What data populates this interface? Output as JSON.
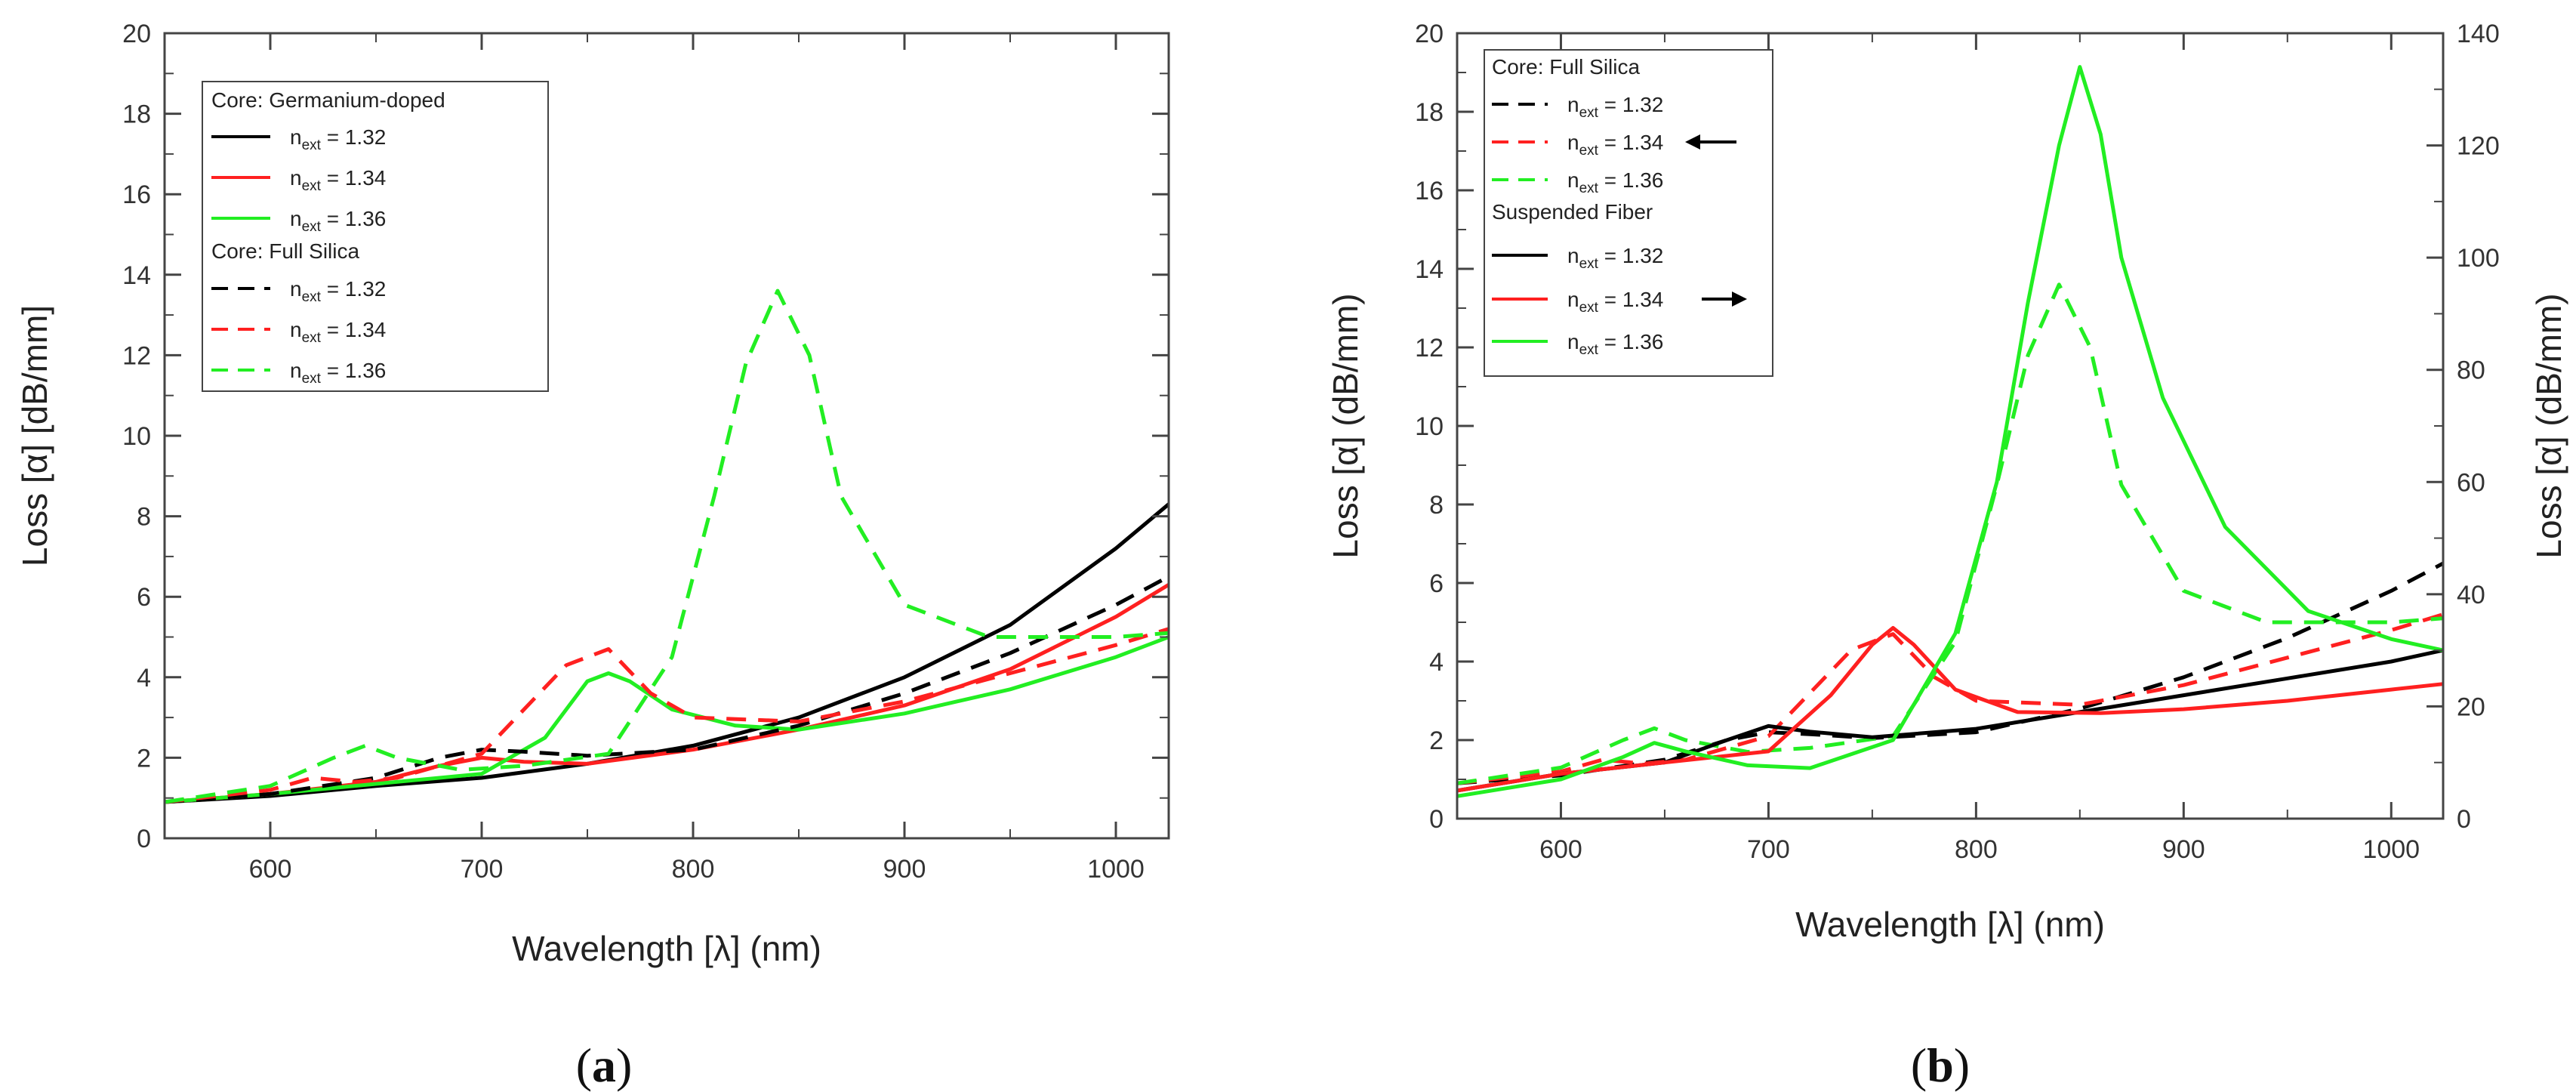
{
  "chart_data": [
    {
      "panel": "(a)",
      "panel_letter": "a",
      "type": "line",
      "xlabel": "Wavelength [λ] (nm)",
      "ylabel": "Loss [α] [dB/mm]",
      "xlim": [
        550,
        1025
      ],
      "ylim": [
        0,
        20
      ],
      "x_ticks": [
        600,
        700,
        800,
        900,
        1000
      ],
      "y_ticks": [
        0,
        2,
        4,
        6,
        8,
        10,
        12,
        14,
        16,
        18,
        20
      ],
      "legend": {
        "position": "top-left",
        "groups": [
          {
            "title": "Core: Germanium-doped",
            "entries": [
              {
                "main": "n",
                "sub": "ext",
                "rest": " = 1.32",
                "color": "#000000",
                "dash": "solid"
              },
              {
                "main": "n",
                "sub": "ext",
                "rest": " = 1.34",
                "color": "#ff2020",
                "dash": "solid"
              },
              {
                "main": "n",
                "sub": "ext",
                "rest": " = 1.36",
                "color": "#22ee22",
                "dash": "solid"
              }
            ]
          },
          {
            "title": "Core: Full Silica",
            "entries": [
              {
                "main": "n",
                "sub": "ext",
                "rest": " = 1.32",
                "color": "#000000",
                "dash": "dashed"
              },
              {
                "main": "n",
                "sub": "ext",
                "rest": " = 1.34",
                "color": "#ff2020",
                "dash": "dashed"
              },
              {
                "main": "n",
                "sub": "ext",
                "rest": " = 1.36",
                "color": "#22ee22",
                "dash": "dashed"
              }
            ]
          }
        ]
      },
      "series": [
        {
          "name": "Germanium-doped, n_ext = 1.32",
          "color": "#000000",
          "dash": "solid",
          "x": [
            550,
            600,
            650,
            700,
            750,
            800,
            850,
            900,
            950,
            1000,
            1025
          ],
          "y": [
            0.9,
            1.05,
            1.3,
            1.5,
            1.85,
            2.3,
            3.0,
            4.0,
            5.3,
            7.2,
            8.3
          ]
        },
        {
          "name": "Germanium-doped, n_ext = 1.34",
          "color": "#ff2020",
          "dash": "solid",
          "x": [
            550,
            600,
            650,
            680,
            700,
            720,
            750,
            800,
            850,
            900,
            950,
            1000,
            1025
          ],
          "y": [
            0.9,
            1.1,
            1.4,
            1.8,
            2.0,
            1.9,
            1.85,
            2.2,
            2.7,
            3.3,
            4.2,
            5.5,
            6.3
          ]
        },
        {
          "name": "Germanium-doped, n_ext = 1.36",
          "color": "#22ee22",
          "dash": "solid",
          "x": [
            550,
            600,
            650,
            700,
            730,
            750,
            760,
            770,
            790,
            820,
            850,
            900,
            950,
            1000,
            1025
          ],
          "y": [
            0.9,
            1.1,
            1.35,
            1.6,
            2.5,
            3.9,
            4.1,
            3.9,
            3.2,
            2.8,
            2.7,
            3.1,
            3.7,
            4.5,
            5.0
          ]
        },
        {
          "name": "Full Silica, n_ext = 1.32",
          "color": "#000000",
          "dash": "dashed",
          "x": [
            550,
            600,
            650,
            680,
            700,
            720,
            750,
            800,
            850,
            900,
            950,
            1000,
            1025
          ],
          "y": [
            0.9,
            1.1,
            1.5,
            2.0,
            2.2,
            2.15,
            2.05,
            2.2,
            2.8,
            3.6,
            4.6,
            5.8,
            6.5
          ]
        },
        {
          "name": "Full Silica, n_ext = 1.34",
          "color": "#ff2020",
          "dash": "dashed",
          "x": [
            550,
            600,
            620,
            640,
            660,
            700,
            740,
            760,
            780,
            800,
            850,
            900,
            950,
            1000,
            1025
          ],
          "y": [
            0.9,
            1.2,
            1.5,
            1.4,
            1.5,
            2.1,
            4.3,
            4.7,
            3.6,
            3.0,
            2.9,
            3.4,
            4.1,
            4.8,
            5.2
          ]
        },
        {
          "name": "Full Silica, n_ext = 1.36",
          "color": "#22ee22",
          "dash": "dashed",
          "x": [
            550,
            600,
            630,
            645,
            660,
            690,
            720,
            760,
            790,
            810,
            825,
            840,
            855,
            870,
            900,
            940,
            1000,
            1025
          ],
          "y": [
            0.9,
            1.3,
            2.0,
            2.3,
            2.0,
            1.7,
            1.8,
            2.1,
            4.5,
            8.5,
            11.8,
            13.6,
            12.0,
            8.5,
            5.8,
            5.0,
            5.0,
            5.1
          ]
        }
      ]
    },
    {
      "panel": "(b)",
      "panel_letter": "b",
      "type": "line",
      "xlabel": "Wavelength [λ] (nm)",
      "ylabel": "Loss [α] (dB/mm)",
      "y2label": "Loss [α] (dB/mm)",
      "xlim": [
        550,
        1025
      ],
      "ylim": [
        0,
        20
      ],
      "y2lim": [
        0,
        140
      ],
      "x_ticks": [
        600,
        700,
        800,
        900,
        1000
      ],
      "y_ticks": [
        0,
        2,
        4,
        6,
        8,
        10,
        12,
        14,
        16,
        18,
        20
      ],
      "y2_ticks": [
        0,
        20,
        40,
        60,
        80,
        100,
        120,
        140
      ],
      "legend": {
        "position": "top-left",
        "groups": [
          {
            "title": "Core: Full Silica",
            "entries": [
              {
                "main": "n",
                "sub": "ext",
                "rest": " = 1.32",
                "color": "#000000",
                "dash": "dashed"
              },
              {
                "main": "n",
                "sub": "ext",
                "rest": " = 1.34",
                "color": "#ff2020",
                "dash": "dashed",
                "arrow": "left"
              },
              {
                "main": "n",
                "sub": "ext",
                "rest": " = 1.36",
                "color": "#22ee22",
                "dash": "dashed"
              }
            ]
          },
          {
            "title": "Suspended Fiber",
            "entries": [
              {
                "main": "n",
                "sub": "ext",
                "rest": " = 1.32",
                "color": "#000000",
                "dash": "solid"
              },
              {
                "main": "n",
                "sub": "ext",
                "rest": " = 1.34",
                "color": "#ff2020",
                "dash": "solid",
                "arrow": "right"
              },
              {
                "main": "n",
                "sub": "ext",
                "rest": " = 1.36",
                "color": "#22ee22",
                "dash": "solid"
              }
            ]
          }
        ]
      },
      "series": [
        {
          "name": "Full Silica, n_ext = 1.32",
          "axis": "left",
          "color": "#000000",
          "dash": "dashed",
          "x": [
            550,
            600,
            650,
            680,
            700,
            720,
            750,
            800,
            850,
            900,
            950,
            1000,
            1025
          ],
          "y": [
            0.9,
            1.1,
            1.5,
            2.0,
            2.2,
            2.15,
            2.05,
            2.2,
            2.8,
            3.6,
            4.6,
            5.8,
            6.5
          ]
        },
        {
          "name": "Full Silica, n_ext = 1.34",
          "axis": "left",
          "color": "#ff2020",
          "dash": "dashed",
          "x": [
            550,
            600,
            620,
            640,
            660,
            700,
            740,
            760,
            780,
            800,
            850,
            900,
            950,
            1000,
            1025
          ],
          "y": [
            0.9,
            1.2,
            1.5,
            1.4,
            1.5,
            2.1,
            4.3,
            4.7,
            3.6,
            3.0,
            2.9,
            3.4,
            4.1,
            4.8,
            5.2
          ]
        },
        {
          "name": "Full Silica, n_ext = 1.36",
          "axis": "left",
          "color": "#22ee22",
          "dash": "dashed",
          "x": [
            550,
            600,
            630,
            645,
            660,
            690,
            720,
            760,
            790,
            810,
            825,
            840,
            855,
            870,
            900,
            940,
            1000,
            1025
          ],
          "y": [
            0.9,
            1.3,
            2.0,
            2.3,
            2.0,
            1.7,
            1.8,
            2.1,
            4.5,
            8.5,
            11.8,
            13.6,
            12.0,
            8.5,
            5.8,
            5.0,
            5.0,
            5.1
          ]
        },
        {
          "name": "Suspended Fiber, n_ext = 1.32",
          "axis": "right",
          "color": "#000000",
          "dash": "solid",
          "x": [
            550,
            600,
            650,
            680,
            700,
            720,
            750,
            800,
            850,
            900,
            950,
            1000,
            1025
          ],
          "y": [
            5,
            8,
            10,
            14,
            16.5,
            15.5,
            14.5,
            16,
            19,
            22,
            25,
            28,
            30
          ]
        },
        {
          "name": "Suspended Fiber, n_ext = 1.34",
          "axis": "right",
          "color": "#ff2020",
          "dash": "solid",
          "x": [
            550,
            600,
            650,
            700,
            730,
            750,
            760,
            770,
            790,
            820,
            860,
            900,
            950,
            1000,
            1025
          ],
          "y": [
            5,
            8,
            10,
            12,
            22,
            31,
            34,
            31,
            23,
            19,
            18.8,
            19.5,
            21,
            23,
            24
          ]
        },
        {
          "name": "Suspended Fiber, n_ext = 1.36",
          "axis": "right",
          "color": "#22ee22",
          "dash": "solid",
          "x": [
            550,
            600,
            630,
            645,
            660,
            690,
            720,
            760,
            790,
            810,
            825,
            840,
            850,
            860,
            870,
            890,
            920,
            960,
            1000,
            1025
          ],
          "y": [
            4,
            7,
            11,
            13.5,
            12,
            9.5,
            9,
            14,
            33,
            60,
            92,
            120,
            134,
            122,
            100,
            75,
            52,
            37,
            32,
            30
          ]
        }
      ]
    }
  ]
}
